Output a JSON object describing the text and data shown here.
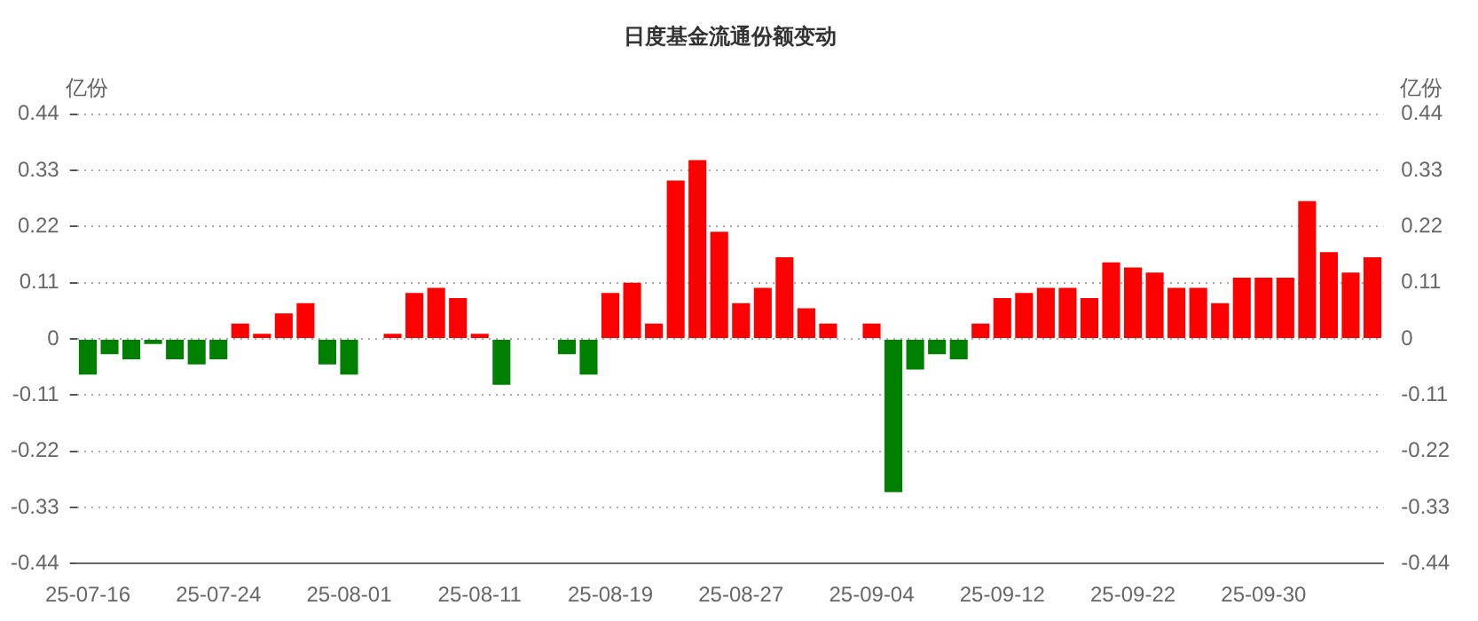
{
  "chart_data": {
    "type": "bar",
    "title": "日度基金流通份额变动",
    "ylabel": "亿份",
    "y2label": "亿份",
    "categories": [
      "25-07-16",
      null,
      null,
      null,
      null,
      null,
      "25-07-24",
      null,
      null,
      null,
      null,
      null,
      "25-08-01",
      null,
      null,
      null,
      null,
      null,
      "25-08-11",
      null,
      null,
      null,
      null,
      null,
      "25-08-19",
      null,
      null,
      null,
      null,
      null,
      "25-08-27",
      null,
      null,
      null,
      null,
      null,
      "25-09-04",
      null,
      null,
      null,
      null,
      null,
      "25-09-12",
      null,
      null,
      null,
      null,
      null,
      "25-09-22",
      null,
      null,
      null,
      null,
      null,
      "25-09-30",
      null,
      null,
      null,
      null,
      null
    ],
    "values": [
      -0.07,
      -0.03,
      -0.04,
      -0.01,
      -0.04,
      -0.05,
      -0.04,
      0.03,
      0.01,
      0.05,
      0.07,
      -0.05,
      -0.07,
      null,
      0.01,
      0.09,
      0.1,
      0.08,
      0.01,
      -0.09,
      null,
      null,
      -0.03,
      -0.07,
      0.09,
      0.11,
      0.03,
      0.31,
      0.35,
      0.21,
      0.07,
      0.1,
      0.16,
      0.06,
      0.03,
      null,
      0.03,
      -0.3,
      -0.06,
      -0.03,
      -0.04,
      0.03,
      0.08,
      0.09,
      0.1,
      0.1,
      0.08,
      0.15,
      0.14,
      0.13,
      0.1,
      0.1,
      0.07,
      0.12,
      0.12,
      0.12,
      0.27,
      0.17,
      0.13,
      0.16
    ],
    "colors": [
      "#008000",
      "#008000",
      "#008000",
      "#008000",
      "#008000",
      "#008000",
      "#008000",
      "#ff0000",
      "#ff0000",
      "#ff0000",
      "#ff0000",
      "#008000",
      "#008000",
      "#ff0000",
      "#ff0000",
      "#ff0000",
      "#ff0000",
      "#ff0000",
      "#ff0000",
      "#008000",
      "#ff0000",
      "#ff0000",
      "#008000",
      "#008000",
      "#ff0000",
      "#ff0000",
      "#ff0000",
      "#ff0000",
      "#ff0000",
      "#ff0000",
      "#ff0000",
      "#ff0000",
      "#ff0000",
      "#ff0000",
      "#ff0000",
      "#ff0000",
      "#ff0000",
      "#008000",
      "#008000",
      "#008000",
      "#008000",
      "#ff0000",
      "#ff0000",
      "#ff0000",
      "#ff0000",
      "#ff0000",
      "#ff0000",
      "#ff0000",
      "#ff0000",
      "#ff0000",
      "#ff0000",
      "#ff0000",
      "#ff0000",
      "#ff0000",
      "#ff0000",
      "#ff0000",
      "#ff0000",
      "#ff0000",
      "#ff0000",
      "#ff0000"
    ],
    "ylim": [
      -0.44,
      0.44
    ],
    "yticks": [
      -0.44,
      -0.33,
      -0.22,
      -0.11,
      0,
      0.11,
      0.22,
      0.33,
      0.44
    ],
    "y2lim": [
      -0.44,
      0.44
    ],
    "y2ticks": [
      -0.44,
      -0.33,
      -0.22,
      -0.11,
      0,
      0.11,
      0.22,
      0.33,
      0.44
    ],
    "grid": "y",
    "legend": false
  }
}
